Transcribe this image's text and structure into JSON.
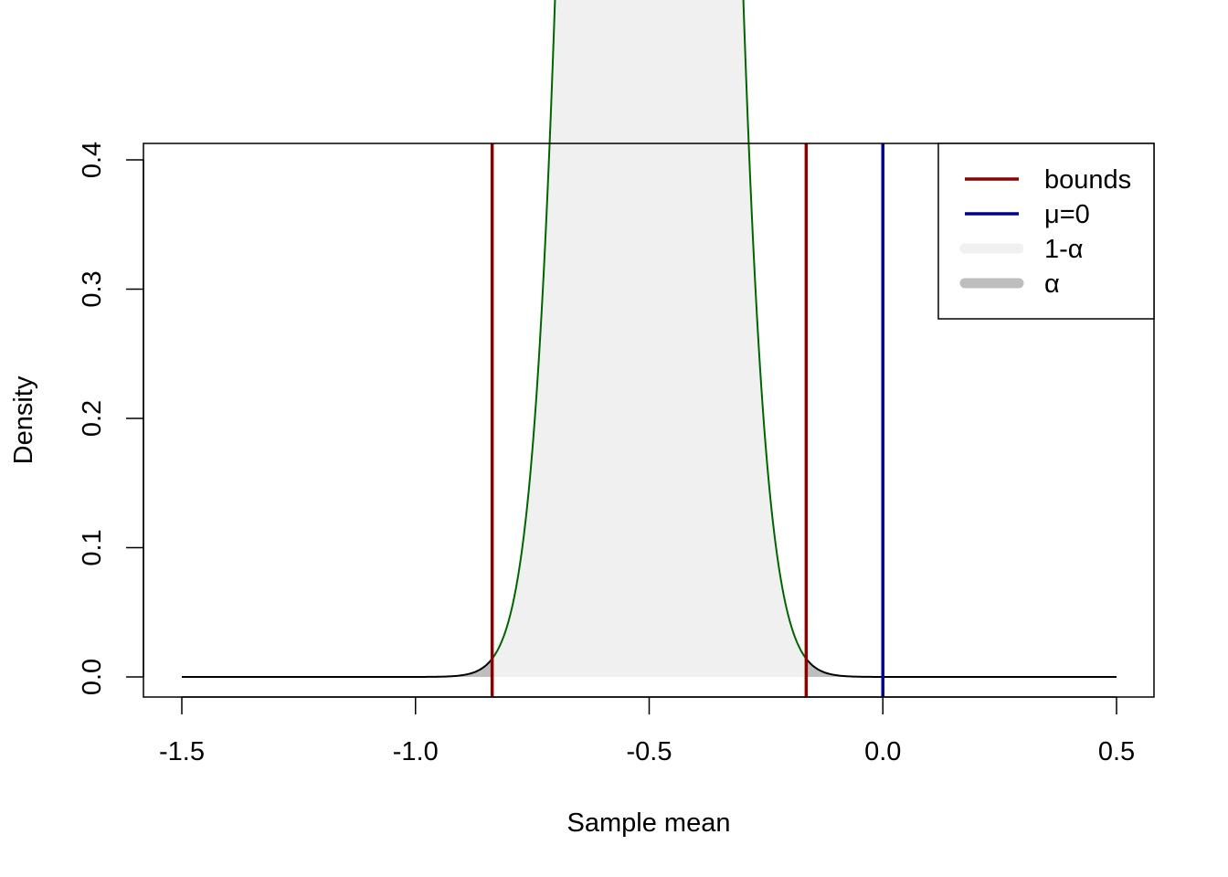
{
  "chart_data": {
    "type": "area",
    "title": "",
    "xlabel": "Sample mean",
    "ylabel": "Density",
    "xlim": [
      -1.5,
      0.5
    ],
    "ylim": [
      0.0,
      0.4
    ],
    "x_ticks": [
      "-1.5",
      "-1.0",
      "-0.5",
      "0.0",
      "0.5"
    ],
    "y_ticks": [
      "0.0",
      "0.1",
      "0.2",
      "0.3",
      "0.4"
    ],
    "distribution": {
      "family": "normal",
      "mean": -0.5,
      "sd": 0.1
    },
    "bounds": [
      -0.836,
      -0.164
    ],
    "mu0": 0.0,
    "grid": false,
    "legend_position": "top-right",
    "legend": [
      {
        "key": "bounds",
        "label": "bounds",
        "color": "#8b0000",
        "style": "line"
      },
      {
        "key": "mu",
        "label": "μ=0",
        "color": "#00008b",
        "style": "line"
      },
      {
        "key": "conf",
        "label": "1-α",
        "color": "#f0f0f0",
        "style": "thick"
      },
      {
        "key": "alpha",
        "label": "α",
        "color": "#bebebe",
        "style": "thick"
      }
    ],
    "colors": {
      "curve_inside": "#006400",
      "curve_tails": "#000000",
      "fill_inside": "#f0f0f0",
      "fill_tails": "#bebebe",
      "bounds": "#8b0000",
      "mu0": "#00008b"
    }
  }
}
